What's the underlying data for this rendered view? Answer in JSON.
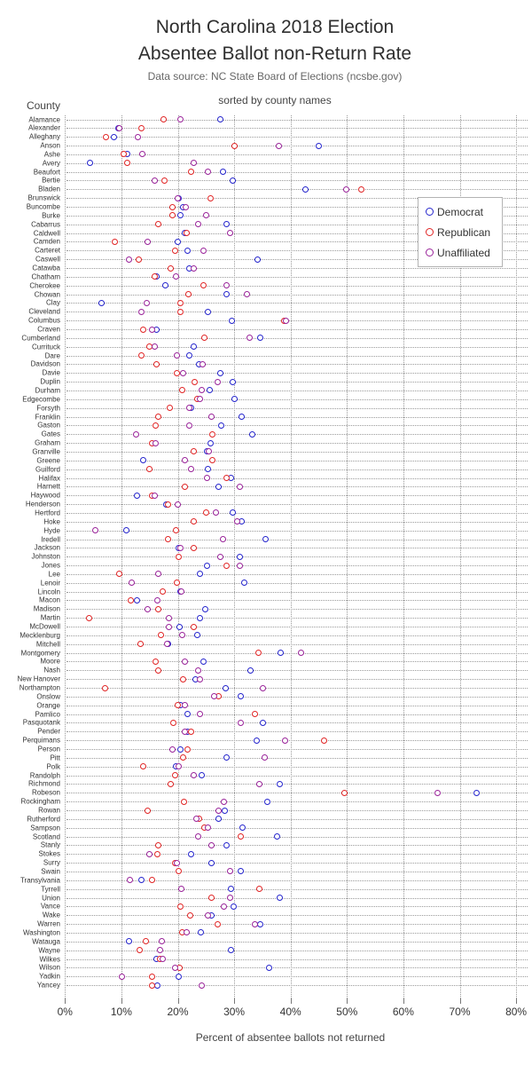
{
  "header": {
    "title_line1": "North Carolina 2018 Election",
    "title_line2": "Absentee Ballot non-Return Rate",
    "subtitle": "Data source: NC State Board of Elections (ncsbe.gov)"
  },
  "legend": {
    "items": [
      {
        "key": "democrat",
        "label": "Democrat",
        "color": "#2424cc"
      },
      {
        "key": "republican",
        "label": "Republican",
        "color": "#e02424"
      },
      {
        "key": "unaffiliated",
        "label": "Unaffiliated",
        "color": "#992299"
      }
    ]
  },
  "chart_data": {
    "type": "scatter",
    "title": "North Carolina 2018 Election Absentee Ballot non-Return Rate",
    "subtitle": "Data source: NC State Board of Elections (ncsbe.gov)",
    "note": "sorted by county names",
    "xlabel": "Percent of absentee ballots not returned",
    "ylabel": "County",
    "xlim": [
      0,
      80
    ],
    "grid": "dotted",
    "legend_position": "upper-right-inside",
    "x_tick_values": [
      0,
      10,
      20,
      30,
      40,
      50,
      60,
      70,
      80
    ],
    "x_tick_labels": [
      "0%",
      "10%",
      "20%",
      "30%",
      "40%",
      "50%",
      "60%",
      "70%",
      "80%"
    ],
    "series_names": [
      "Democrat",
      "Republican",
      "Unaffiliated"
    ],
    "counties": [
      {
        "name": "Alamance",
        "democrat": 27.5,
        "republican": 17.5,
        "unaffiliated": 20.5
      },
      {
        "name": "Alexander",
        "democrat": 9.5,
        "republican": 13.5,
        "unaffiliated": 9.7
      },
      {
        "name": "Alleghany",
        "democrat": 8.7,
        "republican": 7.2,
        "unaffiliated": 13.0
      },
      {
        "name": "Anson",
        "democrat": 45.0,
        "republican": 30.0,
        "unaffiliated": 38.0
      },
      {
        "name": "Ashe",
        "democrat": 11.1,
        "republican": 10.4,
        "unaffiliated": 13.7
      },
      {
        "name": "Avery",
        "democrat": 4.5,
        "republican": 11.0,
        "unaffiliated": 22.8
      },
      {
        "name": "Beaufort",
        "democrat": 28.0,
        "republican": 22.3,
        "unaffiliated": 25.3
      },
      {
        "name": "Bertie",
        "democrat": 29.8,
        "republican": 17.7,
        "unaffiliated": 15.9
      },
      {
        "name": "Bladen",
        "democrat": 42.7,
        "republican": 52.6,
        "unaffiliated": 49.8
      },
      {
        "name": "Brunswick",
        "democrat": 20.1,
        "republican": 25.8,
        "unaffiliated": 20.0
      },
      {
        "name": "Buncombe",
        "democrat": 21.0,
        "republican": 19.0,
        "unaffiliated": 21.4
      },
      {
        "name": "Burke",
        "democrat": 20.5,
        "republican": 19.1,
        "unaffiliated": 25.1
      },
      {
        "name": "Cabarrus",
        "democrat": 28.7,
        "republican": 16.5,
        "unaffiliated": 23.6
      },
      {
        "name": "Caldwell",
        "democrat": 21.3,
        "republican": 21.6,
        "unaffiliated": 29.2
      },
      {
        "name": "Camden",
        "democrat": 20.0,
        "republican": 8.9,
        "unaffiliated": 14.6
      },
      {
        "name": "Carteret",
        "democrat": 21.7,
        "republican": 19.6,
        "unaffiliated": 24.5
      },
      {
        "name": "Caswell",
        "democrat": 34.1,
        "republican": 13.1,
        "unaffiliated": 11.3
      },
      {
        "name": "Catawba",
        "democrat": 22.0,
        "republican": 18.7,
        "unaffiliated": 22.8
      },
      {
        "name": "Chatham",
        "democrat": 16.3,
        "republican": 15.9,
        "unaffiliated": 19.7
      },
      {
        "name": "Cherokee",
        "democrat": 17.8,
        "republican": 24.5,
        "unaffiliated": 28.7
      },
      {
        "name": "Chowan",
        "democrat": 28.7,
        "republican": 21.9,
        "unaffiliated": 32.3
      },
      {
        "name": "Clay",
        "democrat": 6.5,
        "republican": 20.4,
        "unaffiliated": 14.5
      },
      {
        "name": "Cleveland",
        "democrat": 25.3,
        "republican": 20.5,
        "unaffiliated": 13.5
      },
      {
        "name": "Columbus",
        "democrat": 29.6,
        "republican": 38.9,
        "unaffiliated": 39.2
      },
      {
        "name": "Craven",
        "democrat": 16.3,
        "republican": 13.8,
        "unaffiliated": 15.4
      },
      {
        "name": "Cumberland",
        "democrat": 34.7,
        "republican": 24.7,
        "unaffiliated": 32.7
      },
      {
        "name": "Currituck",
        "democrat": 22.8,
        "republican": 15.0,
        "unaffiliated": 15.9
      },
      {
        "name": "Dare",
        "democrat": 22.1,
        "republican": 13.5,
        "unaffiliated": 19.8
      },
      {
        "name": "Davidson",
        "democrat": 23.7,
        "republican": 16.3,
        "unaffiliated": 24.4
      },
      {
        "name": "Davie",
        "democrat": 27.6,
        "republican": 19.8,
        "unaffiliated": 21.0
      },
      {
        "name": "Duplin",
        "democrat": 29.8,
        "republican": 23.0,
        "unaffiliated": 27.0
      },
      {
        "name": "Durham",
        "democrat": 25.6,
        "republican": 20.8,
        "unaffiliated": 24.3
      },
      {
        "name": "Edgecombe",
        "democrat": 30.0,
        "republican": 23.4,
        "unaffiliated": 24.0
      },
      {
        "name": "Forsyth",
        "democrat": 22.4,
        "republican": 18.6,
        "unaffiliated": 22.1
      },
      {
        "name": "Franklin",
        "democrat": 31.3,
        "republican": 16.6,
        "unaffiliated": 25.9
      },
      {
        "name": "Gaston",
        "democrat": 27.7,
        "republican": 16.1,
        "unaffiliated": 22.0
      },
      {
        "name": "Gates",
        "democrat": 33.2,
        "republican": 26.2,
        "unaffiliated": 12.6
      },
      {
        "name": "Graham",
        "democrat": 25.8,
        "republican": 15.5,
        "unaffiliated": 16.0
      },
      {
        "name": "Granville",
        "democrat": 25.2,
        "republican": 22.8,
        "unaffiliated": 25.5
      },
      {
        "name": "Greene",
        "democrat": 13.8,
        "republican": 26.1,
        "unaffiliated": 21.2
      },
      {
        "name": "Guilford",
        "democrat": 25.3,
        "republican": 15.0,
        "unaffiliated": 22.4
      },
      {
        "name": "Halifax",
        "democrat": 29.4,
        "republican": 28.6,
        "unaffiliated": 25.2
      },
      {
        "name": "Harnett",
        "democrat": 27.3,
        "republican": 21.3,
        "unaffiliated": 31.0
      },
      {
        "name": "Haywood",
        "democrat": 12.7,
        "republican": 15.4,
        "unaffiliated": 15.9
      },
      {
        "name": "Henderson",
        "democrat": 17.9,
        "republican": 18.3,
        "unaffiliated": 20.0
      },
      {
        "name": "Hertford",
        "democrat": 29.8,
        "republican": 25.0,
        "unaffiliated": 26.8
      },
      {
        "name": "Hoke",
        "democrat": 31.3,
        "republican": 22.8,
        "unaffiliated": 30.6
      },
      {
        "name": "Hyde",
        "democrat": 10.9,
        "republican": 19.7,
        "unaffiliated": 5.3
      },
      {
        "name": "Iredell",
        "democrat": 35.5,
        "republican": 18.3,
        "unaffiliated": 28.0
      },
      {
        "name": "Jackson",
        "democrat": 20.1,
        "republican": 22.9,
        "unaffiliated": 20.4
      },
      {
        "name": "Johnston",
        "democrat": 31.0,
        "republican": 20.2,
        "unaffiliated": 27.6
      },
      {
        "name": "Jones",
        "democrat": 25.2,
        "republican": 28.7,
        "unaffiliated": 31.0
      },
      {
        "name": "Lee",
        "democrat": 23.9,
        "republican": 9.6,
        "unaffiliated": 16.6
      },
      {
        "name": "Lenoir",
        "democrat": 31.8,
        "republican": 19.8,
        "unaffiliated": 11.8
      },
      {
        "name": "Lincoln",
        "democrat": 20.5,
        "republican": 17.3,
        "unaffiliated": 20.7
      },
      {
        "name": "Macon",
        "democrat": 12.7,
        "republican": 11.7,
        "unaffiliated": 16.4
      },
      {
        "name": "Madison",
        "democrat": 24.8,
        "republican": 16.6,
        "unaffiliated": 14.6
      },
      {
        "name": "Martin",
        "democrat": 23.9,
        "republican": 4.3,
        "unaffiliated": 18.4
      },
      {
        "name": "McDowell",
        "democrat": 20.3,
        "republican": 22.9,
        "unaffiliated": 18.4
      },
      {
        "name": "Mecklenburg",
        "democrat": 23.5,
        "republican": 17.0,
        "unaffiliated": 20.8
      },
      {
        "name": "Mitchell",
        "democrat": 18.3,
        "republican": 13.4,
        "unaffiliated": 18.1
      },
      {
        "name": "Montgomery",
        "democrat": 38.2,
        "republican": 34.3,
        "unaffiliated": 41.9
      },
      {
        "name": "Moore",
        "democrat": 24.6,
        "republican": 16.1,
        "unaffiliated": 21.3
      },
      {
        "name": "Nash",
        "democrat": 32.9,
        "republican": 16.6,
        "unaffiliated": 23.6
      },
      {
        "name": "New Hanover",
        "democrat": 23.2,
        "republican": 21.0,
        "unaffiliated": 24.0
      },
      {
        "name": "Northampton",
        "democrat": 28.5,
        "republican": 7.1,
        "unaffiliated": 35.1
      },
      {
        "name": "Onslow",
        "democrat": 31.1,
        "republican": 27.3,
        "unaffiliated": 26.4
      },
      {
        "name": "Orange",
        "democrat": 20.4,
        "republican": 20.0,
        "unaffiliated": 21.3
      },
      {
        "name": "Pamlico",
        "democrat": 21.8,
        "republican": 33.7,
        "unaffiliated": 24.0
      },
      {
        "name": "Pasquotank",
        "democrat": 35.1,
        "republican": 19.2,
        "unaffiliated": 31.1
      },
      {
        "name": "Pender",
        "democrat": 21.8,
        "republican": 22.3,
        "unaffiliated": 21.3
      },
      {
        "name": "Perquimans",
        "democrat": 34.0,
        "republican": 46.0,
        "unaffiliated": 39.0
      },
      {
        "name": "Person",
        "democrat": 20.4,
        "republican": 21.8,
        "unaffiliated": 19.0
      },
      {
        "name": "Pitt",
        "democrat": 28.7,
        "republican": 21.0,
        "unaffiliated": 35.4
      },
      {
        "name": "Polk",
        "democrat": 19.7,
        "republican": 13.9,
        "unaffiliated": 20.1
      },
      {
        "name": "Randolph",
        "democrat": 24.2,
        "republican": 19.5,
        "unaffiliated": 22.9
      },
      {
        "name": "Richmond",
        "democrat": 38.1,
        "republican": 18.7,
        "unaffiliated": 34.4
      },
      {
        "name": "Robeson",
        "democrat": 73.0,
        "republican": 49.5,
        "unaffiliated": 66.0
      },
      {
        "name": "Rockingham",
        "democrat": 35.9,
        "republican": 21.1,
        "unaffiliated": 28.2
      },
      {
        "name": "Rowan",
        "democrat": 28.4,
        "republican": 14.7,
        "unaffiliated": 27.3
      },
      {
        "name": "Rutherford",
        "democrat": 27.3,
        "republican": 23.8,
        "unaffiliated": 23.3
      },
      {
        "name": "Sampson",
        "democrat": 31.4,
        "republican": 24.7,
        "unaffiliated": 25.3
      },
      {
        "name": "Scotland",
        "democrat": 37.6,
        "republican": 31.1,
        "unaffiliated": 23.6
      },
      {
        "name": "Stanly",
        "democrat": 28.7,
        "republican": 16.5,
        "unaffiliated": 25.9
      },
      {
        "name": "Stokes",
        "democrat": 22.4,
        "republican": 16.4,
        "unaffiliated": 15.0
      },
      {
        "name": "Surry",
        "democrat": 26.0,
        "republican": 19.5,
        "unaffiliated": 19.9
      },
      {
        "name": "Swain",
        "democrat": 31.1,
        "republican": 20.2,
        "unaffiliated": 29.3
      },
      {
        "name": "Transylvania",
        "democrat": 13.5,
        "republican": 15.5,
        "unaffiliated": 11.5
      },
      {
        "name": "Tyrrell",
        "democrat": 29.4,
        "republican": 34.5,
        "unaffiliated": 20.7
      },
      {
        "name": "Union",
        "democrat": 38.1,
        "republican": 25.9,
        "unaffiliated": 29.3
      },
      {
        "name": "Vance",
        "democrat": 29.9,
        "republican": 20.5,
        "unaffiliated": 28.1
      },
      {
        "name": "Wake",
        "democrat": 26.0,
        "republican": 22.2,
        "unaffiliated": 25.3
      },
      {
        "name": "Warren",
        "democrat": 34.6,
        "republican": 27.0,
        "unaffiliated": 33.7
      },
      {
        "name": "Washington",
        "democrat": 24.1,
        "republican": 20.8,
        "unaffiliated": 21.6
      },
      {
        "name": "Watauga",
        "democrat": 11.4,
        "republican": 14.4,
        "unaffiliated": 17.2
      },
      {
        "name": "Wayne",
        "democrat": 29.4,
        "republican": 13.3,
        "unaffiliated": 16.9
      },
      {
        "name": "Wilkes",
        "democrat": 16.2,
        "republican": 16.8,
        "unaffiliated": 17.4
      },
      {
        "name": "Wilson",
        "democrat": 36.2,
        "republican": 20.3,
        "unaffiliated": 19.5
      },
      {
        "name": "Yadkin",
        "democrat": 20.1,
        "republican": 15.4,
        "unaffiliated": 10.1
      },
      {
        "name": "Yancey",
        "democrat": 16.4,
        "republican": 15.4,
        "unaffiliated": 24.3
      }
    ]
  }
}
